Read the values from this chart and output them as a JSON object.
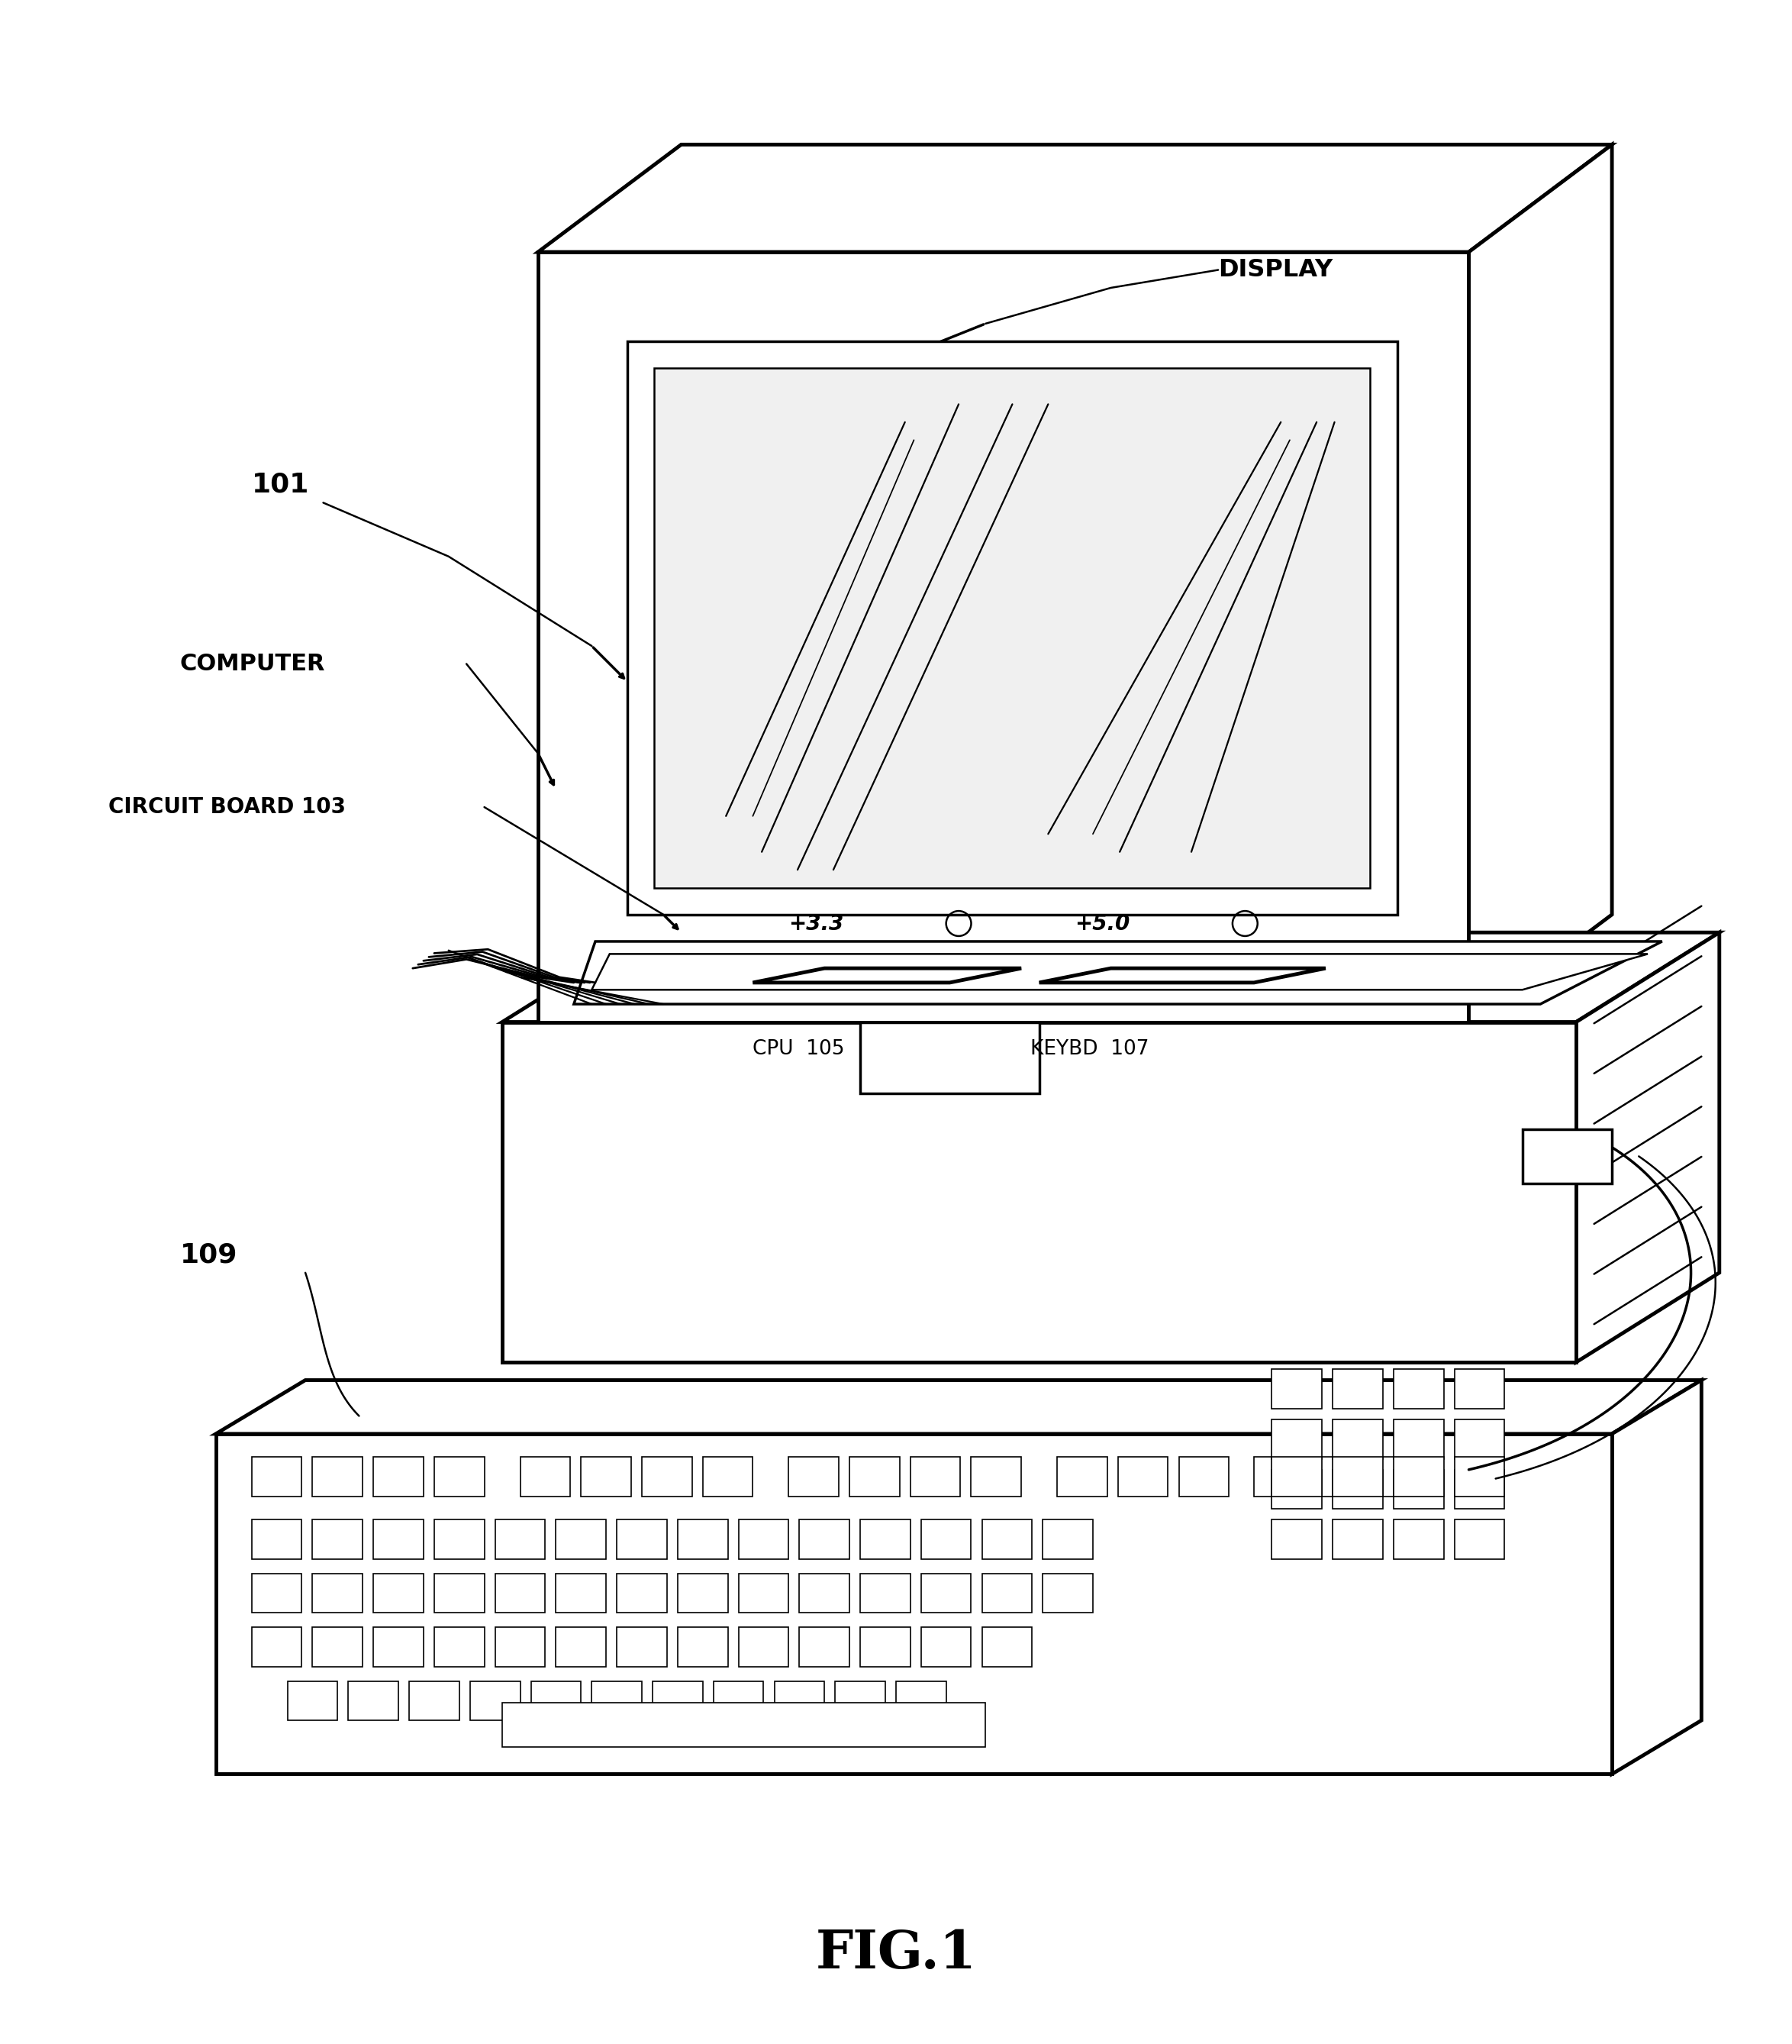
{
  "bg_color": "#ffffff",
  "line_color": "#000000",
  "fig_label": "FIG.1",
  "labels": {
    "display": "DISPLAY",
    "computer": "COMPUTER",
    "circuit_board": "CIRCUIT BOARD 103",
    "cpu": "CPU  105",
    "keybd": "KEYBD  107",
    "ref_101": "101",
    "ref_109": "109",
    "voltage_33": "+3.3",
    "voltage_50": "+5.0"
  },
  "lw_thin": 1.8,
  "lw_med": 2.5,
  "lw_thick": 3.5
}
